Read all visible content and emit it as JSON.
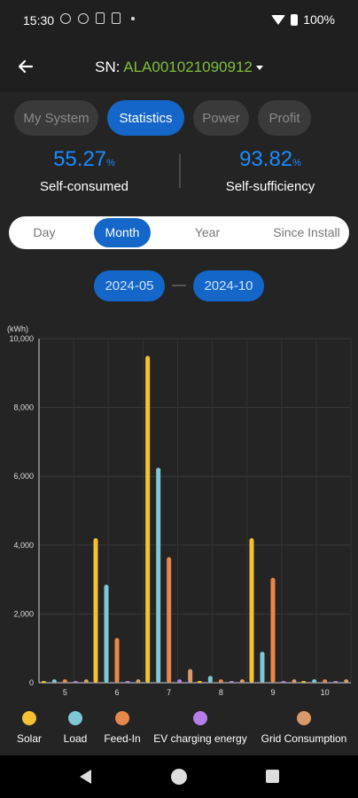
{
  "status": {
    "time": "15:30",
    "battery": "100%"
  },
  "header": {
    "sn_label": "SN: ",
    "sn_value": "ALA001021090912"
  },
  "tabs": [
    {
      "label": "My System",
      "active": false
    },
    {
      "label": "Statistics",
      "active": true
    },
    {
      "label": "Power",
      "active": false
    },
    {
      "label": "Profit",
      "active": false
    }
  ],
  "stats": {
    "self_consumed": {
      "value": "55.27",
      "unit": "%",
      "label": "Self-consumed"
    },
    "self_sufficiency": {
      "value": "93.82",
      "unit": "%",
      "label": "Self-sufficiency"
    }
  },
  "range": {
    "items": [
      "Day",
      "Month",
      "Year",
      "Since Install"
    ],
    "selected": "Month"
  },
  "dates": {
    "start": "2024-05",
    "end": "2024-10"
  },
  "legend": [
    {
      "label": "Solar",
      "color": "#f5c133"
    },
    {
      "label": "Load",
      "color": "#7ec8d6"
    },
    {
      "label": "Feed-In",
      "color": "#e8874a"
    },
    {
      "label": "EV charging energy",
      "color": "#b67ee8"
    },
    {
      "label": "Grid Consumption",
      "color": "#d89a6a"
    }
  ],
  "chart_data": {
    "type": "bar",
    "ylabel": "(kWh)",
    "ylim": [
      0,
      10000
    ],
    "yticks": [
      "0",
      "2,000",
      "4,000",
      "6,000",
      "8,000",
      "10,000"
    ],
    "categories": [
      "5",
      "6",
      "7",
      "8",
      "9",
      "10"
    ],
    "grid": true,
    "series": [
      {
        "name": "Solar",
        "color": "#f5c133",
        "values": [
          0,
          4200,
          9500,
          50,
          4200,
          0
        ]
      },
      {
        "name": "Load",
        "color": "#7ec8d6",
        "values": [
          100,
          2850,
          6250,
          200,
          900,
          100
        ]
      },
      {
        "name": "Feed-In",
        "color": "#e8874a",
        "values": [
          100,
          1300,
          3650,
          100,
          3050,
          100
        ]
      },
      {
        "name": "EV charging energy",
        "color": "#b67ee8",
        "values": [
          0,
          0,
          100,
          0,
          0,
          0
        ]
      },
      {
        "name": "Grid Consumption",
        "color": "#d89a6a",
        "values": [
          100,
          100,
          400,
          100,
          100,
          100
        ]
      }
    ]
  }
}
